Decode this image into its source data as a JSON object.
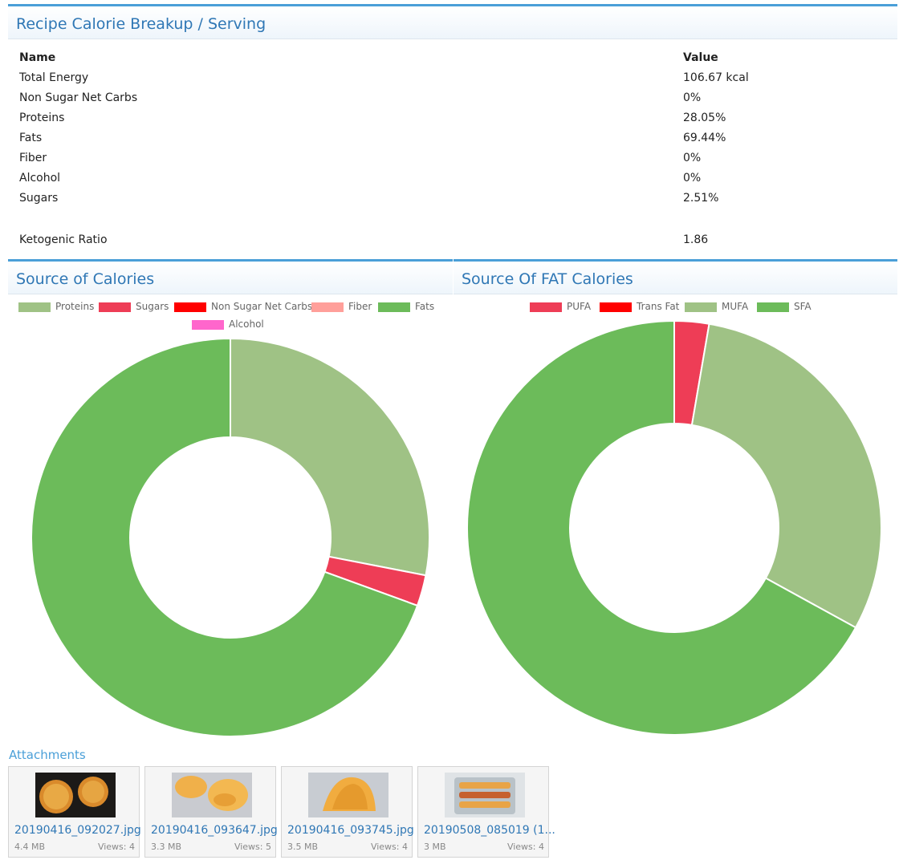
{
  "breakup": {
    "title": "Recipe Calorie Breakup / Serving",
    "col_name": "Name",
    "col_value": "Value",
    "rows": [
      {
        "name": "Total Energy",
        "value": "106.67 kcal"
      },
      {
        "name": "Non Sugar Net Carbs",
        "value": "0%"
      },
      {
        "name": "Proteins",
        "value": "28.05%"
      },
      {
        "name": "Fats",
        "value": "69.44%"
      },
      {
        "name": "Fiber",
        "value": "0%"
      },
      {
        "name": "Alcohol",
        "value": "0%"
      },
      {
        "name": "Sugars",
        "value": "2.51%"
      }
    ],
    "keto": {
      "name": "Ketogenic Ratio",
      "value": "1.86"
    }
  },
  "source_chart": {
    "title": "Source of Calories"
  },
  "fat_chart": {
    "title": "Source Of FAT Calories"
  },
  "chart_data": [
    {
      "type": "pie",
      "title": "Source of Calories",
      "legend_position": "top",
      "labels": [
        "Proteins",
        "Sugars",
        "Non Sugar Net Carbs",
        "Fiber",
        "Fats",
        "Alcohol"
      ],
      "values": [
        28.05,
        2.51,
        0,
        0,
        69.44,
        0
      ],
      "colors": [
        "#9fc285",
        "#ee3d56",
        "#ff0000",
        "#ff9f9a",
        "#6cbb5a",
        "#ff66cc"
      ]
    },
    {
      "type": "pie",
      "title": "Source Of FAT Calories",
      "legend_position": "top",
      "labels": [
        "PUFA",
        "Trans Fat",
        "MUFA",
        "SFA"
      ],
      "values": [
        2.7,
        0,
        30.3,
        67.0
      ],
      "colors": [
        "#ee3d56",
        "#ff0000",
        "#9fc285",
        "#6cbb5a"
      ]
    }
  ],
  "attachments": {
    "title": "Attachments",
    "views_label": "Views:",
    "items": [
      {
        "name": "20190416_092027.jpg",
        "size": "4.4 MB",
        "views": "4",
        "thumb": "cookies-photo-icon"
      },
      {
        "name": "20190416_093647.jpg",
        "size": "3.3 MB",
        "views": "5",
        "thumb": "chips-photo-icon"
      },
      {
        "name": "20190416_093745.jpg",
        "size": "3.5 MB",
        "views": "4",
        "thumb": "taco-shell-photo-icon"
      },
      {
        "name": "20190508_085019 (1...",
        "size": "3 MB",
        "views": "4",
        "thumb": "tacos-tray-photo-icon"
      }
    ]
  }
}
